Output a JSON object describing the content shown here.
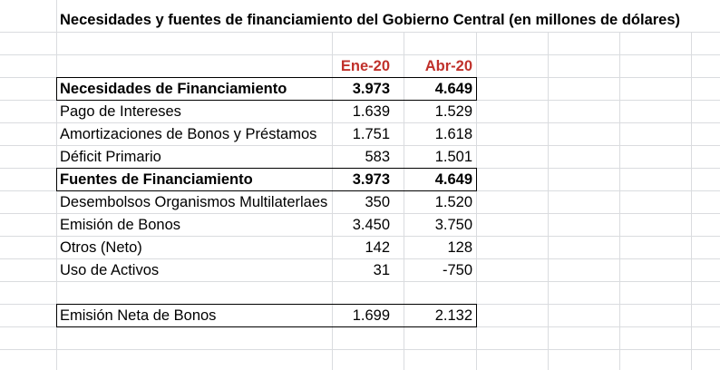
{
  "title": "Necesidades y fuentes de financiamiento del Gobierno Central (en millones de dólares)",
  "columns": [
    "Ene-20",
    "Abr-20"
  ],
  "rows": [
    {
      "label": "Necesidades de Financiamiento",
      "v1": "3.973",
      "v2": "4.649",
      "bold": true
    },
    {
      "label": "Pago de Intereses",
      "v1": "1.639",
      "v2": "1.529"
    },
    {
      "label": "Amortizaciones de Bonos y Préstamos",
      "v1": "1.751",
      "v2": "1.618"
    },
    {
      "label": "Déficit Primario",
      "v1": "583",
      "v2": "1.501"
    },
    {
      "label": "Fuentes de Financiamiento",
      "v1": "3.973",
      "v2": "4.649",
      "bold": true
    },
    {
      "label": "Desembolsos Organismos Multilaterlaes",
      "v1": "350",
      "v2": "1.520"
    },
    {
      "label": "Emisión de Bonos",
      "v1": "3.450",
      "v2": "3.750"
    },
    {
      "label": "Otros (Neto)",
      "v1": "142",
      "v2": "128"
    },
    {
      "label": "Uso de Activos",
      "v1": "31",
      "v2": "-750"
    }
  ],
  "net": {
    "label": "Emisión Neta de Bonos",
    "v1": "1.699",
    "v2": "2.132"
  }
}
